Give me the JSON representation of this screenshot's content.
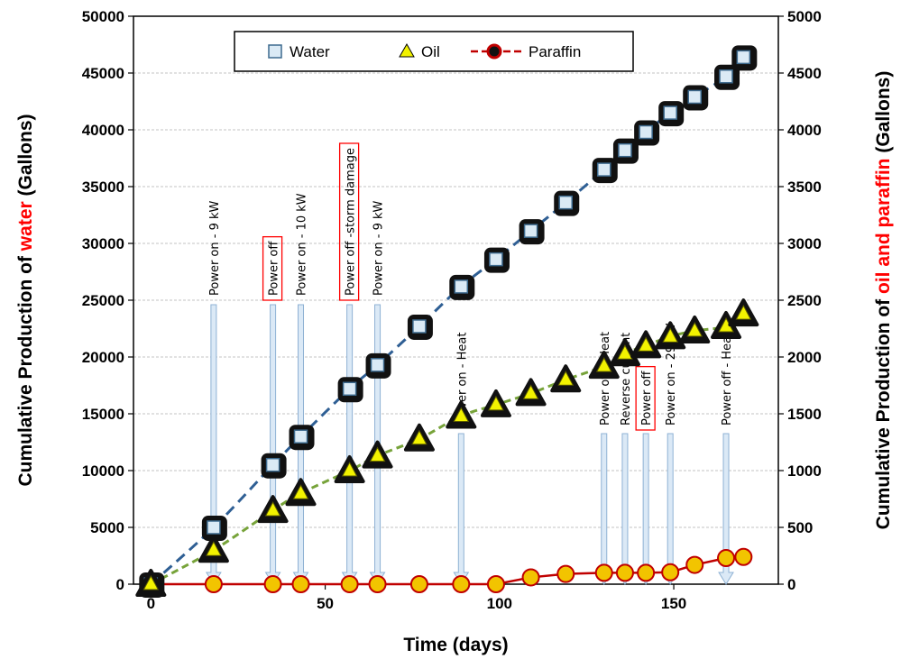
{
  "chart_data": {
    "type": "line",
    "x_axis": {
      "label": "Time (days)",
      "ticks": [
        "0",
        "50",
        "100",
        "150"
      ],
      "range": [
        -5,
        180
      ]
    },
    "y_left_axis": {
      "label_prefix": "Cumulative Production  of ",
      "label_highlight": "water",
      "label_suffix": "  (Gallons)",
      "ticks": [
        "0",
        "5000",
        "10000",
        "15000",
        "20000",
        "25000",
        "30000",
        "35000",
        "40000",
        "45000",
        "50000"
      ],
      "range": [
        0,
        50000
      ]
    },
    "y_right_axis": {
      "label_prefix": "Cumulative Production of ",
      "label_highlight": "oil and paraffin",
      "label_suffix": " (Gallons)",
      "ticks": [
        "0",
        "500",
        "1000",
        "1500",
        "2000",
        "2500",
        "3000",
        "3500",
        "4000",
        "4500",
        "5000"
      ],
      "range": [
        0,
        5000
      ]
    },
    "grid": true,
    "legend": {
      "position": "top-center",
      "entries": [
        {
          "label": "Water",
          "marker": "square"
        },
        {
          "label": "Oil",
          "marker": "triangle"
        },
        {
          "label": "Paraffin",
          "marker": "circle"
        }
      ]
    },
    "colors": {
      "water_marker": "#dbeaf5",
      "water_edge": "#3d6a8e",
      "water_trend": "#2f5f94",
      "oil_marker": "#f2f200",
      "oil_edge": "#5b5b00",
      "oil_trend": "#77a33a",
      "paraffin_marker": "#f2c400",
      "paraffin_edge": "#c00000",
      "paraffin_line": "#c00000",
      "highlight": "#ff0000",
      "arrow_fill": "#dbe9f6",
      "arrow_edge": "#8fb2d4"
    },
    "series": [
      {
        "name": "Water",
        "axis": "left",
        "x": [
          0,
          18,
          35,
          43,
          57,
          65,
          77,
          89,
          99,
          109,
          119,
          130,
          136,
          142,
          149,
          156,
          165,
          170
        ],
        "y": [
          0,
          5000,
          10500,
          13000,
          17200,
          19300,
          22700,
          26200,
          28600,
          31100,
          33600,
          36500,
          38200,
          39800,
          41500,
          42900,
          44700,
          46400
        ]
      },
      {
        "name": "Oil",
        "axis": "right",
        "x": [
          0,
          18,
          35,
          43,
          57,
          65,
          77,
          89,
          99,
          109,
          119,
          130,
          136,
          142,
          149,
          156,
          165,
          170
        ],
        "y": [
          0,
          300,
          650,
          800,
          1000,
          1130,
          1280,
          1480,
          1580,
          1680,
          1800,
          1920,
          2030,
          2100,
          2180,
          2230,
          2270,
          2380
        ]
      },
      {
        "name": "Paraffin",
        "axis": "right",
        "x": [
          0,
          18,
          35,
          43,
          57,
          65,
          77,
          89,
          99,
          109,
          119,
          130,
          136,
          142,
          149,
          156,
          165,
          170
        ],
        "y": [
          0,
          0,
          0,
          0,
          0,
          0,
          0,
          0,
          0,
          60,
          90,
          100,
          100,
          100,
          105,
          170,
          230,
          240
        ]
      }
    ],
    "annotations_top": [
      {
        "x": 18,
        "text": "Power on - 9 kW",
        "boxed": false
      },
      {
        "x": 35,
        "text": "Power off",
        "boxed": true
      },
      {
        "x": 43,
        "text": "Power on - 10 kW",
        "boxed": false
      },
      {
        "x": 57,
        "text": "Power off -storm damage",
        "boxed": true
      },
      {
        "x": 65,
        "text": "Power on - 9 kW",
        "boxed": false
      }
    ],
    "annotations_bottom": [
      {
        "x": 89,
        "text": "Power on - Heat",
        "boxed": false
      },
      {
        "x": 130,
        "text": "Power off - Heat",
        "boxed": false
      },
      {
        "x": 136,
        "text": "Reverse current",
        "boxed": false
      },
      {
        "x": 142,
        "text": "Power off",
        "boxed": true
      },
      {
        "x": 149,
        "text": "Power on - 29 kW",
        "boxed": false
      },
      {
        "x": 165,
        "text": "Power off - Heat",
        "boxed": false
      }
    ]
  }
}
